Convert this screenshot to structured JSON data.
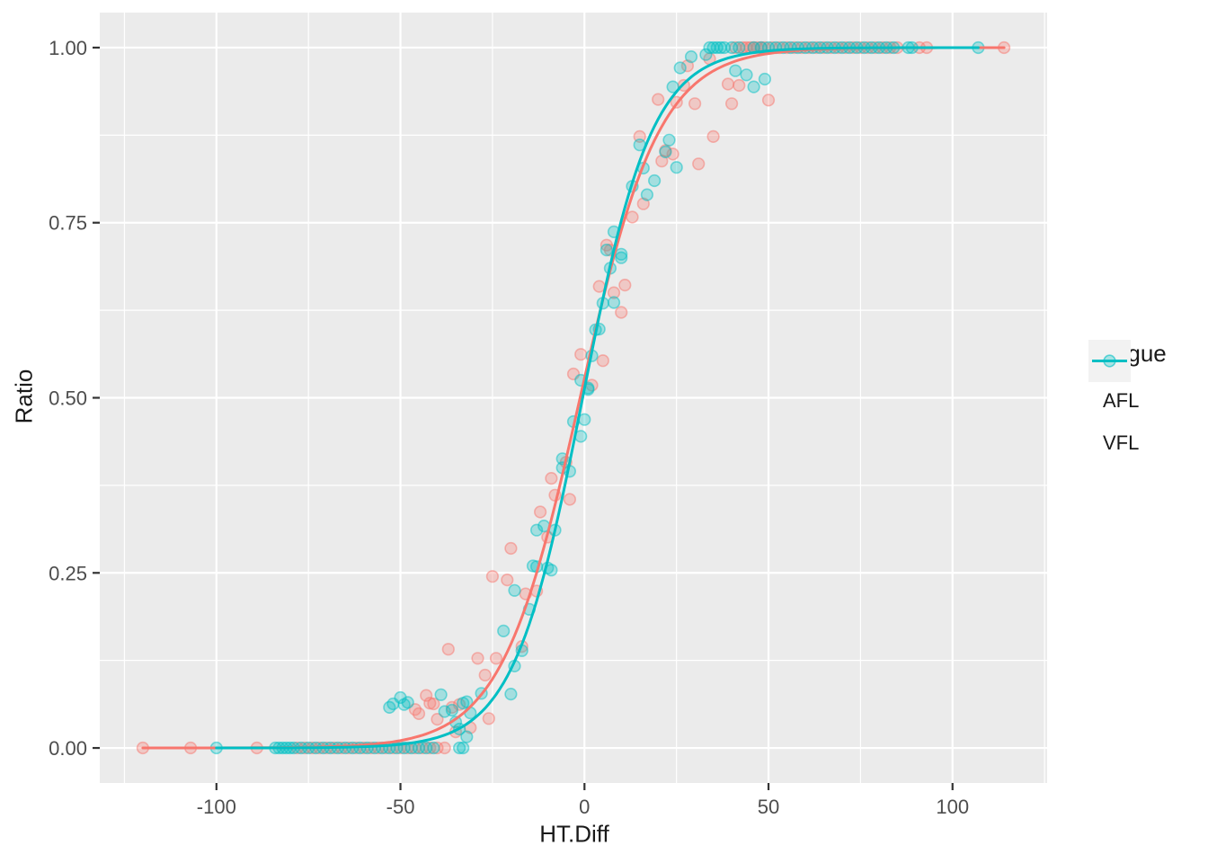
{
  "chart_data": {
    "type": "scatter",
    "title": "",
    "xlabel": "HT.Diff",
    "ylabel": "Ratio",
    "xlim": [
      -131.7,
      125.7
    ],
    "ylim": [
      -0.05,
      1.05
    ],
    "grid": "white major+minor gridlines on grey panel",
    "x_ticks": {
      "values": [
        -100,
        -50,
        0,
        50,
        100
      ],
      "labels": [
        "-100",
        "-50",
        "0",
        "50",
        "100"
      ]
    },
    "y_ticks": {
      "values": [
        0,
        0.25,
        0.5,
        0.75,
        1
      ],
      "labels": [
        "0.00",
        "0.25",
        "0.50",
        "0.75",
        "1.00"
      ]
    },
    "legend": {
      "title": "League",
      "position": "right",
      "entries": [
        {
          "label": "AFL",
          "color": "#F8766D"
        },
        {
          "label": "VFL",
          "color": "#00BFC4"
        }
      ]
    },
    "style": {
      "panel_bg": "#EBEBEB",
      "grid_color": "#FFFFFF",
      "tick_color": "#333333",
      "axis_text_color": "#4D4D4D",
      "title_color": "#1A1A1A",
      "legend_key_bg": "#F2F2F2",
      "point_fill_alpha": 0.3,
      "point_stroke_alpha": 0.5
    },
    "series": [
      {
        "name": "AFL",
        "color": "#F8766D",
        "curve": {
          "type": "logistic",
          "x0": -1.2,
          "k": 0.093,
          "x_from": -120,
          "x_to": 114
        },
        "points": [
          [
            -120,
            0
          ],
          [
            -107,
            0
          ],
          [
            -89,
            0
          ],
          [
            -78,
            0
          ],
          [
            -76,
            0
          ],
          [
            -74,
            0
          ],
          [
            -72,
            0
          ],
          [
            -70,
            0
          ],
          [
            -68,
            0
          ],
          [
            -66,
            0
          ],
          [
            -64,
            0
          ],
          [
            -62,
            0
          ],
          [
            -60,
            0
          ],
          [
            -58,
            0
          ],
          [
            -56,
            0
          ],
          [
            -54,
            0
          ],
          [
            -52,
            0
          ],
          [
            -50,
            0
          ],
          [
            -48,
            0
          ],
          [
            -46,
            0
          ],
          [
            -44,
            0
          ],
          [
            -42,
            0
          ],
          [
            -40,
            0
          ],
          [
            -38,
            0
          ],
          [
            -46,
            0.055
          ],
          [
            -45,
            0.049
          ],
          [
            -43,
            0.075
          ],
          [
            -42,
            0.064
          ],
          [
            -41,
            0.063
          ],
          [
            -40,
            0.041
          ],
          [
            -37,
            0.141
          ],
          [
            -36,
            0.058
          ],
          [
            -35,
            0.023
          ],
          [
            -34,
            0.062
          ],
          [
            -31,
            0.029
          ],
          [
            -29,
            0.128
          ],
          [
            -27,
            0.104
          ],
          [
            -26,
            0.042
          ],
          [
            -25,
            0.245
          ],
          [
            -24,
            0.128
          ],
          [
            -21,
            0.24
          ],
          [
            -20,
            0.285
          ],
          [
            -17,
            0.145
          ],
          [
            -16,
            0.22
          ],
          [
            -13,
            0.224
          ],
          [
            -12,
            0.337
          ],
          [
            -10,
            0.301
          ],
          [
            -9,
            0.385
          ],
          [
            -8,
            0.361
          ],
          [
            -5,
            0.408
          ],
          [
            -4,
            0.355
          ],
          [
            -3,
            0.534
          ],
          [
            -1,
            0.562
          ],
          [
            2,
            0.518
          ],
          [
            4,
            0.659
          ],
          [
            5,
            0.553
          ],
          [
            6,
            0.718
          ],
          [
            7,
            0.711
          ],
          [
            8,
            0.65
          ],
          [
            10,
            0.622
          ],
          [
            11,
            0.661
          ],
          [
            13,
            0.758
          ],
          [
            15,
            0.873
          ],
          [
            16,
            0.777
          ],
          [
            20,
            0.926
          ],
          [
            21,
            0.838
          ],
          [
            22,
            0.853
          ],
          [
            24,
            0.848
          ],
          [
            25,
            0.922
          ],
          [
            27,
            0.946
          ],
          [
            28,
            0.974
          ],
          [
            30,
            0.92
          ],
          [
            31,
            0.834
          ],
          [
            34,
            0.984
          ],
          [
            35,
            0.873
          ],
          [
            39,
            0.948
          ],
          [
            40,
            0.92
          ],
          [
            42,
            0.946
          ],
          [
            50,
            0.925
          ],
          [
            41,
            1
          ],
          [
            43,
            1
          ],
          [
            44,
            1
          ],
          [
            45,
            1
          ],
          [
            46,
            1
          ],
          [
            47,
            1
          ],
          [
            48,
            1
          ],
          [
            49,
            1
          ],
          [
            51,
            1
          ],
          [
            53,
            1
          ],
          [
            55,
            1
          ],
          [
            57,
            1
          ],
          [
            59,
            1
          ],
          [
            61,
            1
          ],
          [
            63,
            1
          ],
          [
            65,
            1
          ],
          [
            67,
            1
          ],
          [
            69,
            1
          ],
          [
            71,
            1
          ],
          [
            73,
            1
          ],
          [
            75,
            1
          ],
          [
            77,
            1
          ],
          [
            79,
            1
          ],
          [
            81,
            1
          ],
          [
            83,
            1
          ],
          [
            85,
            1
          ],
          [
            91,
            1
          ],
          [
            93,
            1
          ],
          [
            114,
            1
          ]
        ]
      },
      {
        "name": "VFL",
        "color": "#00BFC4",
        "curve": {
          "type": "logistic",
          "x0": -0.5,
          "k": 0.106,
          "x_from": -100,
          "x_to": 107
        },
        "points": [
          [
            -100,
            0
          ],
          [
            -84,
            0
          ],
          [
            -83,
            0
          ],
          [
            -82,
            0
          ],
          [
            -81,
            0
          ],
          [
            -80,
            0
          ],
          [
            -79,
            0
          ],
          [
            -77,
            0
          ],
          [
            -75,
            0
          ],
          [
            -73,
            0
          ],
          [
            -71,
            0
          ],
          [
            -69,
            0
          ],
          [
            -67,
            0
          ],
          [
            -65,
            0
          ],
          [
            -63,
            0
          ],
          [
            -61,
            0
          ],
          [
            -59,
            0
          ],
          [
            -57,
            0
          ],
          [
            -55,
            0
          ],
          [
            -53,
            0
          ],
          [
            -51,
            0
          ],
          [
            -49,
            0
          ],
          [
            -47,
            0
          ],
          [
            -45,
            0
          ],
          [
            -43,
            0
          ],
          [
            -41,
            0
          ],
          [
            -34,
            0
          ],
          [
            -33,
            0
          ],
          [
            -53,
            0.058
          ],
          [
            -52,
            0.063
          ],
          [
            -50,
            0.072
          ],
          [
            -49,
            0.062
          ],
          [
            -48,
            0.065
          ],
          [
            -39,
            0.076
          ],
          [
            -38,
            0.052
          ],
          [
            -36,
            0.054
          ],
          [
            -35,
            0.037
          ],
          [
            -34,
            0.027
          ],
          [
            -33,
            0.064
          ],
          [
            -32,
            0.066
          ],
          [
            -32,
            0.016
          ],
          [
            -31,
            0.05
          ],
          [
            -28,
            0.078
          ],
          [
            -22,
            0.167
          ],
          [
            -20,
            0.077
          ],
          [
            -19,
            0.117
          ],
          [
            -19,
            0.225
          ],
          [
            -17,
            0.139
          ],
          [
            -15,
            0.198
          ],
          [
            -14,
            0.26
          ],
          [
            -13,
            0.259
          ],
          [
            -13,
            0.311
          ],
          [
            -11,
            0.317
          ],
          [
            -10,
            0.257
          ],
          [
            -9,
            0.254
          ],
          [
            -8,
            0.311
          ],
          [
            -6,
            0.413
          ],
          [
            -6,
            0.4
          ],
          [
            -4,
            0.395
          ],
          [
            -3,
            0.466
          ],
          [
            -1,
            0.445
          ],
          [
            -1,
            0.525
          ],
          [
            0,
            0.469
          ],
          [
            1,
            0.514
          ],
          [
            1,
            0.512
          ],
          [
            2,
            0.56
          ],
          [
            3,
            0.597
          ],
          [
            4,
            0.598
          ],
          [
            5,
            0.635
          ],
          [
            6,
            0.711
          ],
          [
            7,
            0.685
          ],
          [
            8,
            0.636
          ],
          [
            8,
            0.737
          ],
          [
            10,
            0.7
          ],
          [
            10,
            0.705
          ],
          [
            13,
            0.802
          ],
          [
            15,
            0.861
          ],
          [
            16,
            0.828
          ],
          [
            17,
            0.79
          ],
          [
            19,
            0.81
          ],
          [
            22,
            0.851
          ],
          [
            23,
            0.868
          ],
          [
            24,
            0.944
          ],
          [
            25,
            0.829
          ],
          [
            26,
            0.971
          ],
          [
            29,
            0.987
          ],
          [
            33,
            0.99
          ],
          [
            41,
            0.967
          ],
          [
            44,
            0.961
          ],
          [
            46,
            0.944
          ],
          [
            49,
            0.955
          ],
          [
            34,
            1
          ],
          [
            35,
            1
          ],
          [
            36,
            1
          ],
          [
            37,
            1
          ],
          [
            38,
            1
          ],
          [
            40,
            1
          ],
          [
            42,
            1
          ],
          [
            46,
            1
          ],
          [
            48,
            1
          ],
          [
            50,
            1
          ],
          [
            52,
            1
          ],
          [
            54,
            1
          ],
          [
            56,
            1
          ],
          [
            58,
            1
          ],
          [
            60,
            1
          ],
          [
            62,
            1
          ],
          [
            64,
            1
          ],
          [
            66,
            1
          ],
          [
            68,
            1
          ],
          [
            70,
            1
          ],
          [
            72,
            1
          ],
          [
            74,
            1
          ],
          [
            76,
            1
          ],
          [
            78,
            1
          ],
          [
            80,
            1
          ],
          [
            82,
            1
          ],
          [
            84,
            1
          ],
          [
            88,
            1
          ],
          [
            89,
            1
          ],
          [
            107,
            1
          ]
        ]
      }
    ]
  }
}
